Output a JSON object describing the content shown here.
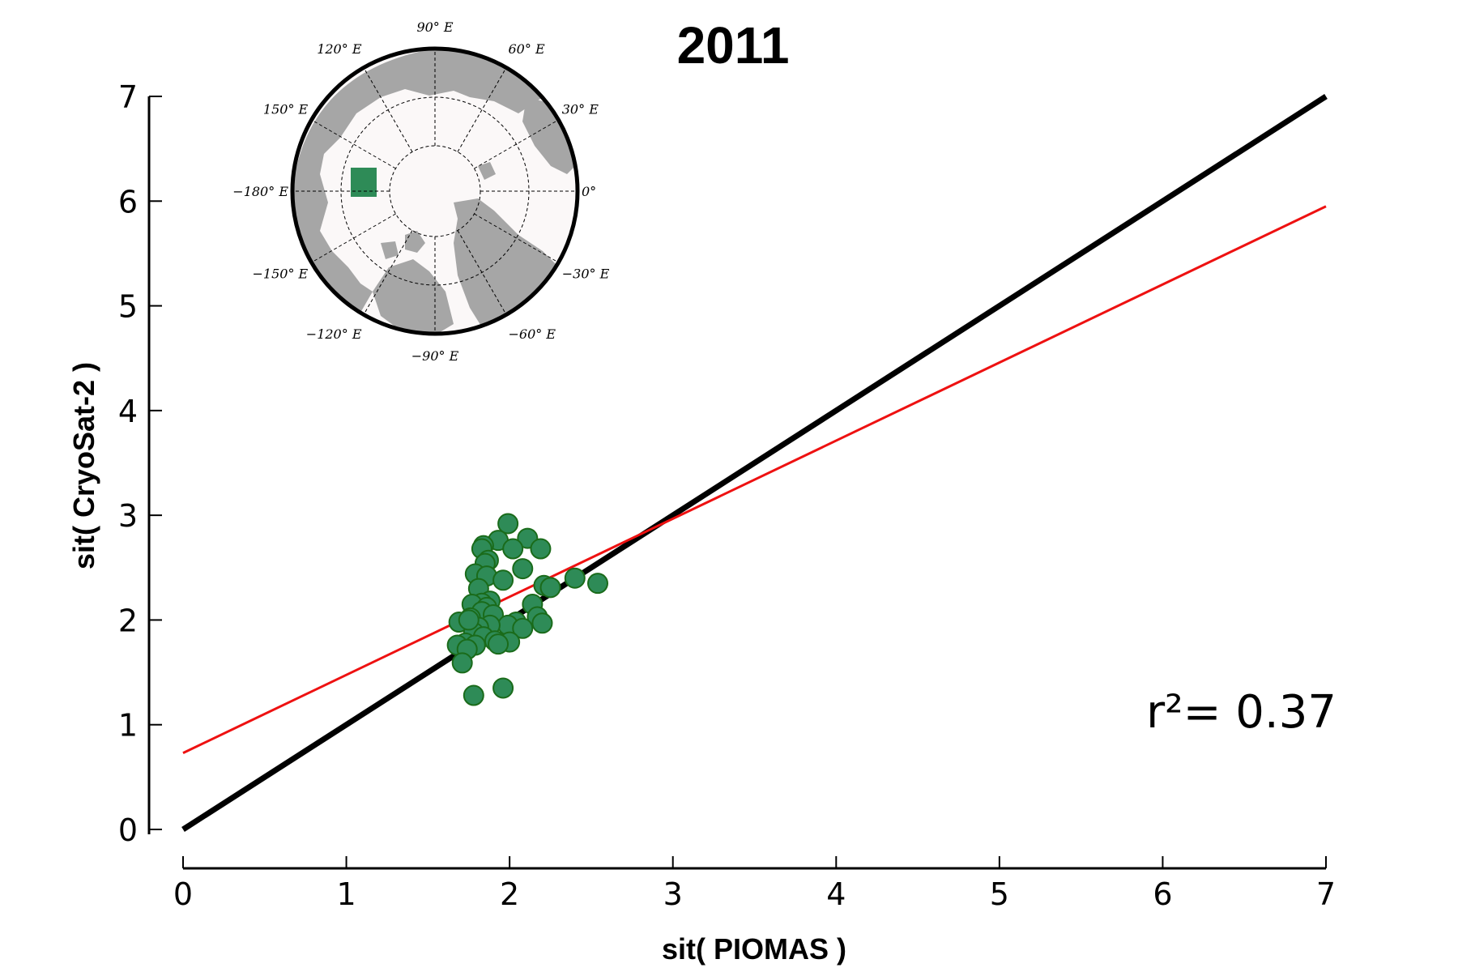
{
  "chart_data": {
    "type": "scatter",
    "title": "2011",
    "xlabel": "sit( PIOMAS )",
    "ylabel": "sit( CryoSat-2 )",
    "xlim": [
      0,
      7
    ],
    "ylim": [
      0,
      7
    ],
    "xticks": [
      "0",
      "1",
      "2",
      "3",
      "4",
      "5",
      "6",
      "7"
    ],
    "yticks": [
      "0",
      "1",
      "2",
      "3",
      "4",
      "5",
      "6",
      "7"
    ],
    "grid": false,
    "legend": "none",
    "r2_label": "r²= 0.37",
    "marker_color": "#2e8b57",
    "marker_edge_color": "#1a6b1a",
    "identity_line": {
      "x": [
        0,
        7
      ],
      "y": [
        0,
        7
      ],
      "color": "#000000"
    },
    "fit_line": {
      "x": [
        0,
        7
      ],
      "y": [
        0.73,
        5.95
      ],
      "color": "#ee1111"
    },
    "points": [
      [
        1.99,
        2.92
      ],
      [
        2.11,
        2.78
      ],
      [
        1.93,
        2.76
      ],
      [
        1.84,
        2.71
      ],
      [
        1.83,
        2.68
      ],
      [
        2.02,
        2.68
      ],
      [
        2.19,
        2.68
      ],
      [
        1.87,
        2.57
      ],
      [
        1.85,
        2.54
      ],
      [
        2.08,
        2.49
      ],
      [
        1.79,
        2.44
      ],
      [
        1.86,
        2.42
      ],
      [
        1.96,
        2.38
      ],
      [
        2.4,
        2.4
      ],
      [
        2.54,
        2.35
      ],
      [
        2.21,
        2.33
      ],
      [
        2.25,
        2.31
      ],
      [
        1.81,
        2.3
      ],
      [
        1.88,
        2.18
      ],
      [
        1.83,
        2.16
      ],
      [
        1.77,
        2.15
      ],
      [
        2.14,
        2.15
      ],
      [
        1.86,
        2.12
      ],
      [
        1.83,
        2.08
      ],
      [
        1.9,
        2.05
      ],
      [
        2.17,
        2.03
      ],
      [
        1.76,
        2.02
      ],
      [
        2.04,
        1.98
      ],
      [
        2.2,
        1.97
      ],
      [
        1.69,
        1.98
      ],
      [
        1.99,
        1.95
      ],
      [
        1.88,
        1.95
      ],
      [
        1.81,
        1.93
      ],
      [
        2.08,
        1.92
      ],
      [
        1.78,
        1.88
      ],
      [
        1.84,
        1.84
      ],
      [
        1.91,
        1.8
      ],
      [
        2.0,
        1.79
      ],
      [
        1.93,
        1.77
      ],
      [
        1.73,
        1.78
      ],
      [
        1.79,
        1.76
      ],
      [
        1.68,
        1.76
      ],
      [
        1.74,
        1.72
      ],
      [
        1.71,
        1.59
      ],
      [
        1.96,
        1.35
      ],
      [
        1.78,
        1.28
      ],
      [
        1.75,
        2.0
      ]
    ]
  },
  "inset_map": {
    "region_color": "#2e8b57",
    "ocean_color": "#fbf8f8",
    "land_color": "#a6a6a6",
    "labels": [
      {
        "text": "90° E",
        "bearing": 0
      },
      {
        "text": "60° E",
        "bearing": 30
      },
      {
        "text": "30° E",
        "bearing": 60
      },
      {
        "text": "0°",
        "bearing": 90
      },
      {
        "text": "−30° E",
        "bearing": 120
      },
      {
        "text": "−60° E",
        "bearing": 150
      },
      {
        "text": "−90° E",
        "bearing": 180
      },
      {
        "text": "−120° E",
        "bearing": 210
      },
      {
        "text": "−150° E",
        "bearing": 240
      },
      {
        "text": "−180° E",
        "bearing": 270
      },
      {
        "text": "150° E",
        "bearing": 300
      },
      {
        "text": "120° E",
        "bearing": 330
      }
    ]
  }
}
